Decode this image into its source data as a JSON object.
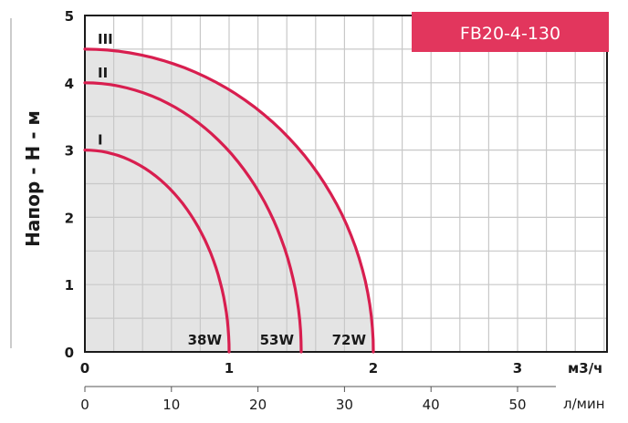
{
  "chart_data": {
    "type": "line",
    "title": "FB20-4-130",
    "ylabel": "Напор - H - м",
    "xlabel": "м3/ч",
    "x2label": "л/мин",
    "xlim": [
      0,
      3.5
    ],
    "ylim": [
      0,
      5
    ],
    "xticks": [
      "0",
      "1",
      "2",
      "3"
    ],
    "yticks": [
      "0",
      "1",
      "2",
      "3",
      "4",
      "5"
    ],
    "x2ticks": [
      "0",
      "10",
      "20",
      "30",
      "40",
      "50"
    ],
    "grid": true,
    "area_fill": true,
    "series": [
      {
        "name": "I",
        "power": "38W",
        "max_head": 3.0,
        "max_flow": 1.0,
        "x": [
          0,
          0.25,
          0.5,
          0.7,
          0.85,
          0.95,
          1.0
        ],
        "y": [
          3.0,
          2.85,
          2.45,
          1.95,
          1.35,
          0.7,
          0
        ]
      },
      {
        "name": "II",
        "power": "53W",
        "max_head": 4.0,
        "max_flow": 1.5,
        "x": [
          0,
          0.4,
          0.8,
          1.1,
          1.3,
          1.45,
          1.5
        ],
        "y": [
          4.0,
          3.75,
          3.15,
          2.45,
          1.6,
          0.75,
          0
        ]
      },
      {
        "name": "III",
        "power": "72W",
        "max_head": 4.5,
        "max_flow": 2.0,
        "x": [
          0,
          0.5,
          1.0,
          1.4,
          1.7,
          1.9,
          2.0
        ],
        "y": [
          4.5,
          4.3,
          3.7,
          2.95,
          2.0,
          1.0,
          0
        ]
      }
    ]
  },
  "colors": {
    "curve": "#d81e4f",
    "title_box": "#e2365d",
    "fill": "#e4e4e4",
    "grid": "#c8c8c8",
    "axis": "#1a1a1a"
  }
}
